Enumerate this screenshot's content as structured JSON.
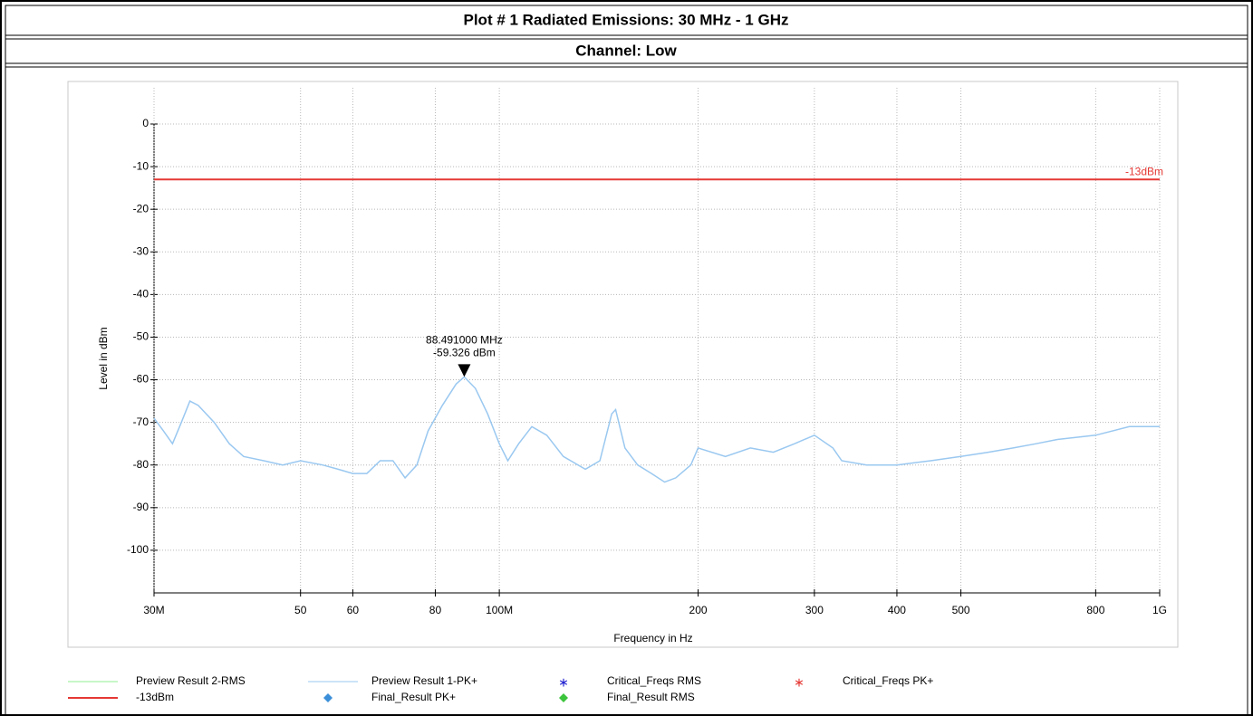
{
  "chart_data": {
    "type": "line",
    "title": "Plot # 1 Radiated Emissions: 30 MHz - 1 GHz",
    "subtitle": "Channel: Low",
    "x_label": "Frequency in Hz",
    "y_label": "Level in dBm",
    "log_x": true,
    "grid": true,
    "xlim": [
      30000000,
      1000000000
    ],
    "ylim": [
      -110,
      0
    ],
    "xticks": [
      {
        "value": 30000000,
        "label": "30M"
      },
      {
        "value": 50000000,
        "label": "50"
      },
      {
        "value": 60000000,
        "label": "60"
      },
      {
        "value": 80000000,
        "label": "80"
      },
      {
        "value": 100000000,
        "label": "100M"
      },
      {
        "value": 200000000,
        "label": "200"
      },
      {
        "value": 300000000,
        "label": "300"
      },
      {
        "value": 400000000,
        "label": "400"
      },
      {
        "value": 500000000,
        "label": "500"
      },
      {
        "value": 800000000,
        "label": "800"
      },
      {
        "value": 1000000000,
        "label": "1G"
      }
    ],
    "yticks": [
      0,
      -10,
      -20,
      -30,
      -40,
      -50,
      -60,
      -70,
      -80,
      -90,
      -100
    ],
    "series": [
      {
        "name": "Preview Result 1-PK+",
        "color": "#9ac8f0",
        "x": [
          30000000,
          31000000,
          32000000,
          33000000,
          34000000,
          35000000,
          37000000,
          39000000,
          41000000,
          44000000,
          47000000,
          50000000,
          54000000,
          57000000,
          60000000,
          63000000,
          66000000,
          69000000,
          72000000,
          75000000,
          78000000,
          82000000,
          86000000,
          88491000,
          92000000,
          96000000,
          100000000,
          103000000,
          107000000,
          112000000,
          118000000,
          125000000,
          135000000,
          142000000,
          148000000,
          150000000,
          155000000,
          162000000,
          170000000,
          178000000,
          185000000,
          195000000,
          200000000,
          220000000,
          240000000,
          260000000,
          280000000,
          300000000,
          320000000,
          330000000,
          360000000,
          400000000,
          450000000,
          500000000,
          550000000,
          600000000,
          650000000,
          700000000,
          800000000,
          900000000,
          1000000000
        ],
        "values": [
          -69,
          -72,
          -75,
          -70,
          -65,
          -66,
          -70,
          -75,
          -78,
          -79,
          -80,
          -79,
          -80,
          -81,
          -82,
          -82,
          -79,
          -79,
          -83,
          -80,
          -72,
          -66,
          -61,
          -59.326,
          -62,
          -68,
          -75,
          -79,
          -75,
          -71,
          -73,
          -78,
          -81,
          -79,
          -68,
          -67,
          -76,
          -80,
          -82,
          -84,
          -83,
          -80,
          -76,
          -78,
          -76,
          -77,
          -75,
          -73,
          -76,
          -79,
          -80,
          -80,
          -79,
          -78,
          -77,
          -76,
          -75,
          -74,
          -73,
          -71,
          -71
        ]
      }
    ],
    "limit": {
      "name": "-13dBm",
      "value": -13,
      "color": "#e53935"
    },
    "marker": {
      "x": 88491000,
      "y": -59.326,
      "labels": [
        "88.491000 MHz",
        "-59.326 dBm"
      ]
    },
    "legend": [
      {
        "name": "Preview Result 2-RMS",
        "color": "#90ee90",
        "symbol": "line"
      },
      {
        "name": "Preview Result 1-PK+",
        "color": "#9ac8f0",
        "symbol": "line"
      },
      {
        "name": "Critical_Freqs RMS",
        "color": "#1f1fd0",
        "symbol": "star"
      },
      {
        "name": "Critical_Freqs PK+",
        "color": "#e53935",
        "symbol": "star"
      },
      {
        "name": "-13dBm",
        "color": "#e53935",
        "symbol": "line"
      },
      {
        "name": "Final_Result PK+",
        "color": "#3b8fd9",
        "symbol": "diamond"
      },
      {
        "name": "Final_Result RMS",
        "color": "#3cc43c",
        "symbol": "diamond"
      }
    ]
  }
}
